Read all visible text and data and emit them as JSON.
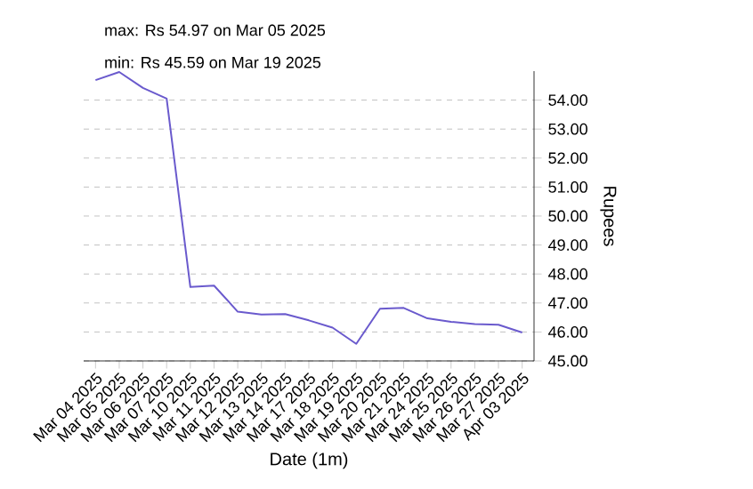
{
  "chart_data": {
    "type": "line",
    "annotations": [
      "max: Rs 54.97 on Mar 05 2025",
      "min: Rs 45.59 on Mar 19 2025"
    ],
    "xlabel": "Date (1m)",
    "ylabel": "Rupees",
    "categories": [
      "Mar 04 2025",
      "Mar 05 2025",
      "Mar 06 2025",
      "Mar 07 2025",
      "Mar 10 2025",
      "Mar 11 2025",
      "Mar 12 2025",
      "Mar 13 2025",
      "Mar 14 2025",
      "Mar 17 2025",
      "Mar 18 2025",
      "Mar 19 2025",
      "Mar 20 2025",
      "Mar 21 2025",
      "Mar 24 2025",
      "Mar 25 2025",
      "Mar 26 2025",
      "Mar 27 2025",
      "Apr 03 2025"
    ],
    "series": [
      {
        "color": "#6a5acd",
        "values": [
          54.69,
          54.97,
          54.42,
          54.05,
          47.55,
          47.6,
          46.7,
          46.6,
          46.62,
          46.4,
          46.15,
          45.59,
          46.8,
          46.83,
          46.47,
          46.35,
          46.27,
          46.25,
          45.98
        ]
      }
    ],
    "ylim": [
      45,
      55
    ],
    "yticks": [
      {
        "value": 45,
        "label": "45.00"
      },
      {
        "value": 46,
        "label": "46.00"
      },
      {
        "value": 47,
        "label": "47.00"
      },
      {
        "value": 48,
        "label": "48.00"
      },
      {
        "value": 49,
        "label": "49.00"
      },
      {
        "value": 50,
        "label": "50.00"
      },
      {
        "value": 51,
        "label": "51.00"
      },
      {
        "value": 52,
        "label": "52.00"
      },
      {
        "value": 53,
        "label": "53.00"
      },
      {
        "value": 54,
        "label": "54.00"
      }
    ],
    "grid": "y",
    "marker": "none",
    "line_style": "solid"
  }
}
